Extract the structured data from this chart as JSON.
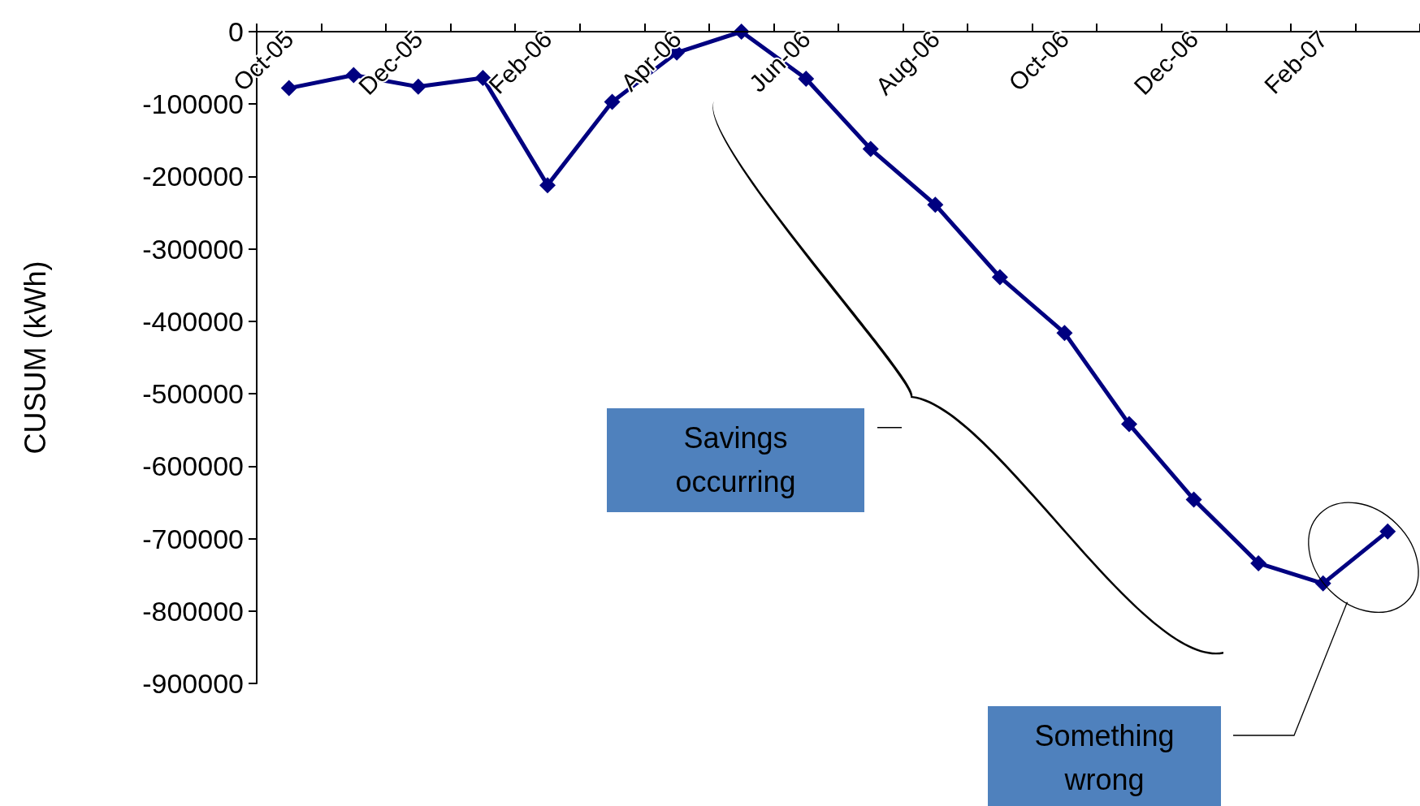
{
  "chart_data": {
    "type": "line",
    "ylabel": "CUSUM (kWh)",
    "categories": [
      "Oct-05",
      null,
      "Dec-05",
      null,
      "Feb-06",
      null,
      "Apr-06",
      null,
      "Jun-06",
      null,
      "Aug-06",
      null,
      "Oct-06",
      null,
      "Dec-06",
      null,
      "Feb-07",
      null
    ],
    "series": [
      {
        "color": "#000080",
        "values": [
          -78000,
          -60000,
          -76000,
          -64000,
          -212000,
          -97000,
          -29000,
          0,
          -65000,
          -162000,
          -239000,
          -339000,
          -416000,
          -542000,
          -646000,
          -734000,
          -762000,
          -690000
        ]
      }
    ],
    "ylim": [
      -900000,
      0
    ],
    "yticks": [
      0,
      -100000,
      -200000,
      -300000,
      -400000,
      -500000,
      -600000,
      -700000,
      -800000,
      -900000
    ],
    "grid": false,
    "marker": "diamond",
    "line_style": "solid",
    "annotations": [
      "Savings occurring",
      "Something wrong"
    ]
  }
}
